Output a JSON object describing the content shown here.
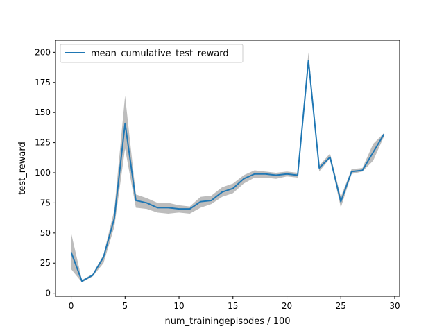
{
  "chart_data": {
    "type": "line",
    "title": "",
    "xlabel": "num_trainingepisodes / 100",
    "ylabel": "test_reward",
    "xlim": [
      -1.45,
      30.45
    ],
    "ylim": [
      -2.5,
      210
    ],
    "xticks": [
      0,
      5,
      10,
      15,
      20,
      25,
      30
    ],
    "yticks": [
      0,
      25,
      50,
      75,
      100,
      125,
      150,
      175,
      200
    ],
    "grid": false,
    "legend_position": "upper-left",
    "series": [
      {
        "name": "mean_cumulative_test_reward",
        "color": "#1f77b4",
        "band_color": "#bdbdbd",
        "x": [
          0,
          1,
          2,
          3,
          4,
          5,
          6,
          7,
          8,
          9,
          10,
          11,
          12,
          13,
          14,
          15,
          16,
          17,
          18,
          19,
          20,
          21,
          22,
          23,
          24,
          25,
          26,
          27,
          28,
          29
        ],
        "y": [
          34,
          10,
          15,
          30,
          62,
          141,
          77,
          75,
          71,
          71,
          70,
          70,
          76,
          77,
          84,
          87,
          95,
          99,
          99,
          98,
          99,
          98,
          193,
          104,
          113,
          76,
          101,
          102,
          117,
          132
        ],
        "lower": [
          20,
          9,
          14,
          25,
          55,
          120,
          71,
          70,
          67,
          66,
          67,
          66,
          71,
          74,
          80,
          83,
          91,
          96,
          96,
          95,
          97,
          96,
          190,
          101,
          112,
          71,
          99,
          101,
          110,
          130
        ],
        "upper": [
          50,
          11,
          16,
          32,
          69,
          164,
          82,
          79,
          75,
          75,
          73,
          72,
          80,
          81,
          88,
          91,
          98,
          102,
          101,
          100,
          101,
          100,
          200,
          106,
          116,
          80,
          103,
          104,
          124,
          133
        ]
      }
    ]
  }
}
